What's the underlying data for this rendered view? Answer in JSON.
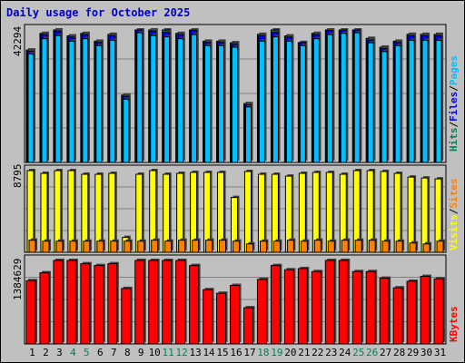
{
  "chart_data": {
    "type": "bar",
    "title": "Daily usage for October 2025",
    "x": [
      1,
      2,
      3,
      4,
      5,
      6,
      7,
      8,
      9,
      10,
      11,
      12,
      13,
      14,
      15,
      16,
      17,
      18,
      19,
      20,
      21,
      22,
      23,
      24,
      25,
      26,
      27,
      28,
      29,
      30,
      31
    ],
    "weekend_days": [
      4,
      5,
      11,
      12,
      18,
      19,
      25,
      26
    ],
    "panels": [
      {
        "name": "pages-files-hits",
        "ymax_label": "42294",
        "ylim": [
          0,
          42294
        ],
        "series": [
          {
            "name": "Hits",
            "color": "#00805c",
            "values": [
              35900,
              41200,
              42294,
              40400,
              41200,
              38700,
              40900,
              21500,
              42294,
              42294,
              42294,
              41200,
              42294,
              38700,
              38700,
              38200,
              18800,
              40900,
              42294,
              40400,
              38200,
              41200,
              42294,
              42294,
              42294,
              39600,
              36800,
              38700,
              40900,
              40900,
              40900
            ]
          },
          {
            "name": "Files",
            "color": "#0000ff",
            "values": [
              35500,
              40800,
              41900,
              40000,
              40800,
              38300,
              40400,
              21100,
              42294,
              41900,
              41500,
              40800,
              42200,
              38300,
              38300,
              37700,
              18400,
              40400,
              41500,
              40000,
              38300,
              40800,
              42100,
              42294,
              42294,
              39100,
              36300,
              38300,
              40400,
              40400,
              40400
            ]
          },
          {
            "name": "Pages",
            "color": "#00c0ff",
            "values": [
              34600,
              39500,
              40500,
              38700,
              39500,
              37300,
              39000,
              20200,
              41400,
              40500,
              40100,
              39500,
              40800,
              37300,
              37300,
              36800,
              17700,
              38700,
              40100,
              38700,
              37300,
              39500,
              40800,
              41200,
              41400,
              38200,
              35400,
              37300,
              39000,
              39000,
              39000
            ]
          }
        ]
      },
      {
        "name": "visits-sites",
        "ymax_label": "8795",
        "ylim": [
          0,
          8795
        ],
        "series": [
          {
            "name": "Visits",
            "color": "#ffff00",
            "values": [
              8795,
              8500,
              8795,
              8795,
              8400,
              8400,
              8500,
              1600,
              8400,
              8795,
              8400,
              8500,
              8600,
              8600,
              8600,
              5900,
              8700,
              8400,
              8400,
              8200,
              8500,
              8600,
              8600,
              8400,
              8795,
              8795,
              8700,
              8500,
              8100,
              8000,
              7900
            ]
          },
          {
            "name": "Sites",
            "color": "#ff8000",
            "values": [
              1300,
              1200,
              1200,
              1200,
              1200,
              1200,
              1200,
              1200,
              1200,
              1300,
              1200,
              1300,
              1300,
              1300,
              1300,
              1200,
              900,
              1200,
              1200,
              1300,
              1200,
              1300,
              1200,
              1300,
              1300,
              1300,
              1200,
              1200,
              1000,
              900,
              1200
            ]
          }
        ]
      },
      {
        "name": "kbytes",
        "ymax_label": "1384629",
        "ylim": [
          0,
          1384629
        ],
        "series": [
          {
            "name": "KBytes",
            "color": "#ff0000",
            "values": [
              1050000,
              1180000,
              1384629,
              1384629,
              1330000,
              1300000,
              1330000,
              920000,
              1384629,
              1384629,
              1384629,
              1384629,
              1300000,
              900000,
              840000,
              970000,
              600000,
              1070000,
              1300000,
              1230000,
              1250000,
              1200000,
              1384629,
              1384629,
              1200000,
              1200000,
              1090000,
              930000,
              1040000,
              1120000,
              1080000
            ]
          }
        ]
      }
    ],
    "right_legends": [
      [
        {
          "text": "Hits",
          "color": "#00805c"
        },
        {
          "text": "/",
          "color": "#000000"
        },
        {
          "text": "Files",
          "color": "#0000ff"
        },
        {
          "text": "/",
          "color": "#000000"
        },
        {
          "text": "Pages",
          "color": "#00c0ff"
        }
      ],
      [
        {
          "text": "Visits",
          "color": "#ffff00"
        },
        {
          "text": "/",
          "color": "#000000"
        },
        {
          "text": "Sites",
          "color": "#ff8000"
        }
      ],
      [
        {
          "text": "KBytes",
          "color": "#ff0000"
        }
      ]
    ],
    "colors": {
      "weekday_label": "#000000",
      "weekend_label": "#00805c",
      "grid": "#808080",
      "plot_bg": "#c0c0c0"
    },
    "grid": true
  }
}
